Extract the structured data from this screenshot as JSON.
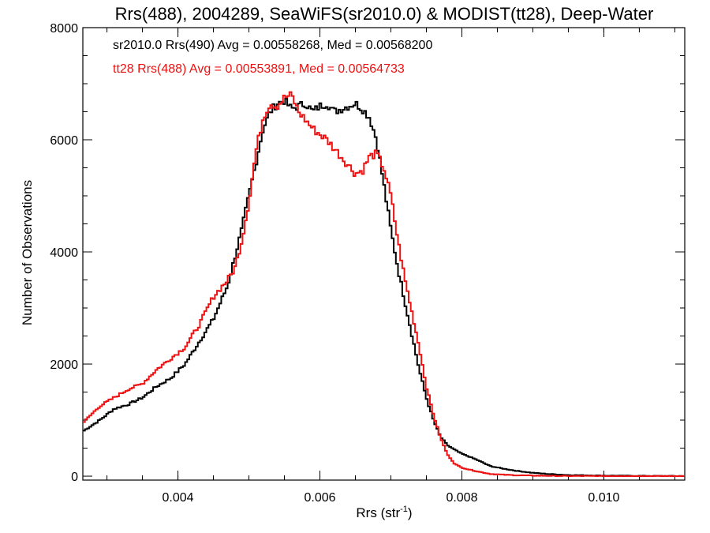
{
  "chart_data": {
    "type": "line",
    "title": "Rrs(488), 2004289, SeaWiFS(sr2010.0) & MODIST(tt28), Deep-Water",
    "xlabel": "Rrs (str",
    "xlabel_sup": "-1",
    "xlabel_close": ")",
    "ylabel": "Number of Observations",
    "xlim": [
      0.00266,
      0.01114
    ],
    "ylim": [
      -70,
      8000
    ],
    "x_ticks": [
      0.004,
      0.006,
      0.008,
      0.01
    ],
    "x_tick_labels": [
      "0.004",
      "0.006",
      "0.008",
      "0.010"
    ],
    "y_ticks": [
      0,
      2000,
      4000,
      6000,
      8000
    ],
    "y_tick_labels": [
      "0",
      "2000",
      "4000",
      "6000",
      "8000"
    ],
    "grid": false,
    "legend_position": "top-left",
    "annotations": [
      {
        "text": "sr2010.0 Rrs(490) Avg = 0.00558268, Med = 0.00568200",
        "color": "#000000"
      },
      {
        "text": "tt28 Rrs(488) Avg = 0.00553891, Med = 0.00564733",
        "color": "#ee1111"
      }
    ],
    "series": [
      {
        "color": "#000000",
        "style": "step",
        "x": [
          0.00266,
          0.0029,
          0.0031,
          0.0033,
          0.0035,
          0.0037,
          0.0039,
          0.0041,
          0.0043,
          0.0045,
          0.0047,
          0.0048,
          0.0049,
          0.005,
          0.0051,
          0.0052,
          0.0053,
          0.0054,
          0.0055,
          0.0056,
          0.0057,
          0.0058,
          0.0059,
          0.006,
          0.0061,
          0.0062,
          0.0063,
          0.0064,
          0.0065,
          0.0066,
          0.0067,
          0.0068,
          0.0069,
          0.007,
          0.0071,
          0.0072,
          0.0073,
          0.0074,
          0.0075,
          0.0076,
          0.0077,
          0.0078,
          0.0079,
          0.008,
          0.0082,
          0.0084,
          0.0086,
          0.0088,
          0.009,
          0.0092,
          0.0095,
          0.01,
          0.0105,
          0.011,
          0.01114
        ],
        "y": [
          800,
          1000,
          1200,
          1280,
          1400,
          1600,
          1750,
          2000,
          2400,
          2800,
          3400,
          3900,
          4400,
          5000,
          5600,
          6200,
          6500,
          6650,
          6700,
          6550,
          6600,
          6650,
          6500,
          6600,
          6650,
          6500,
          6550,
          6600,
          6650,
          6550,
          6400,
          6000,
          5200,
          4400,
          3700,
          3100,
          2500,
          1900,
          1400,
          1000,
          700,
          550,
          470,
          400,
          300,
          180,
          130,
          90,
          60,
          40,
          20,
          10,
          5,
          3,
          2
        ]
      },
      {
        "color": "#ee1111",
        "style": "step",
        "x": [
          0.00266,
          0.0029,
          0.0031,
          0.0033,
          0.0035,
          0.0037,
          0.0039,
          0.0041,
          0.0043,
          0.0045,
          0.0047,
          0.0048,
          0.0049,
          0.005,
          0.0051,
          0.0052,
          0.0053,
          0.0054,
          0.0055,
          0.0056,
          0.0057,
          0.0058,
          0.0059,
          0.006,
          0.0061,
          0.0062,
          0.0063,
          0.0064,
          0.0065,
          0.0066,
          0.0067,
          0.0068,
          0.0069,
          0.007,
          0.0071,
          0.0072,
          0.0073,
          0.0074,
          0.0075,
          0.0076,
          0.0077,
          0.0078,
          0.0079,
          0.008,
          0.0082,
          0.0084,
          0.0086,
          0.0088,
          0.009,
          0.0092,
          0.0095,
          0.01,
          0.0105,
          0.011,
          0.01114
        ],
        "y": [
          950,
          1250,
          1400,
          1550,
          1650,
          1900,
          2100,
          2300,
          2700,
          3200,
          3500,
          3700,
          4200,
          4900,
          5800,
          6400,
          6650,
          6600,
          6750,
          6800,
          6500,
          6350,
          6200,
          6100,
          6000,
          5850,
          5700,
          5550,
          5400,
          5450,
          5700,
          5750,
          5500,
          5000,
          4200,
          3500,
          2900,
          2300,
          1600,
          1100,
          680,
          380,
          220,
          150,
          90,
          40,
          25,
          15,
          10,
          6,
          3,
          2,
          1,
          0,
          0
        ]
      }
    ]
  }
}
